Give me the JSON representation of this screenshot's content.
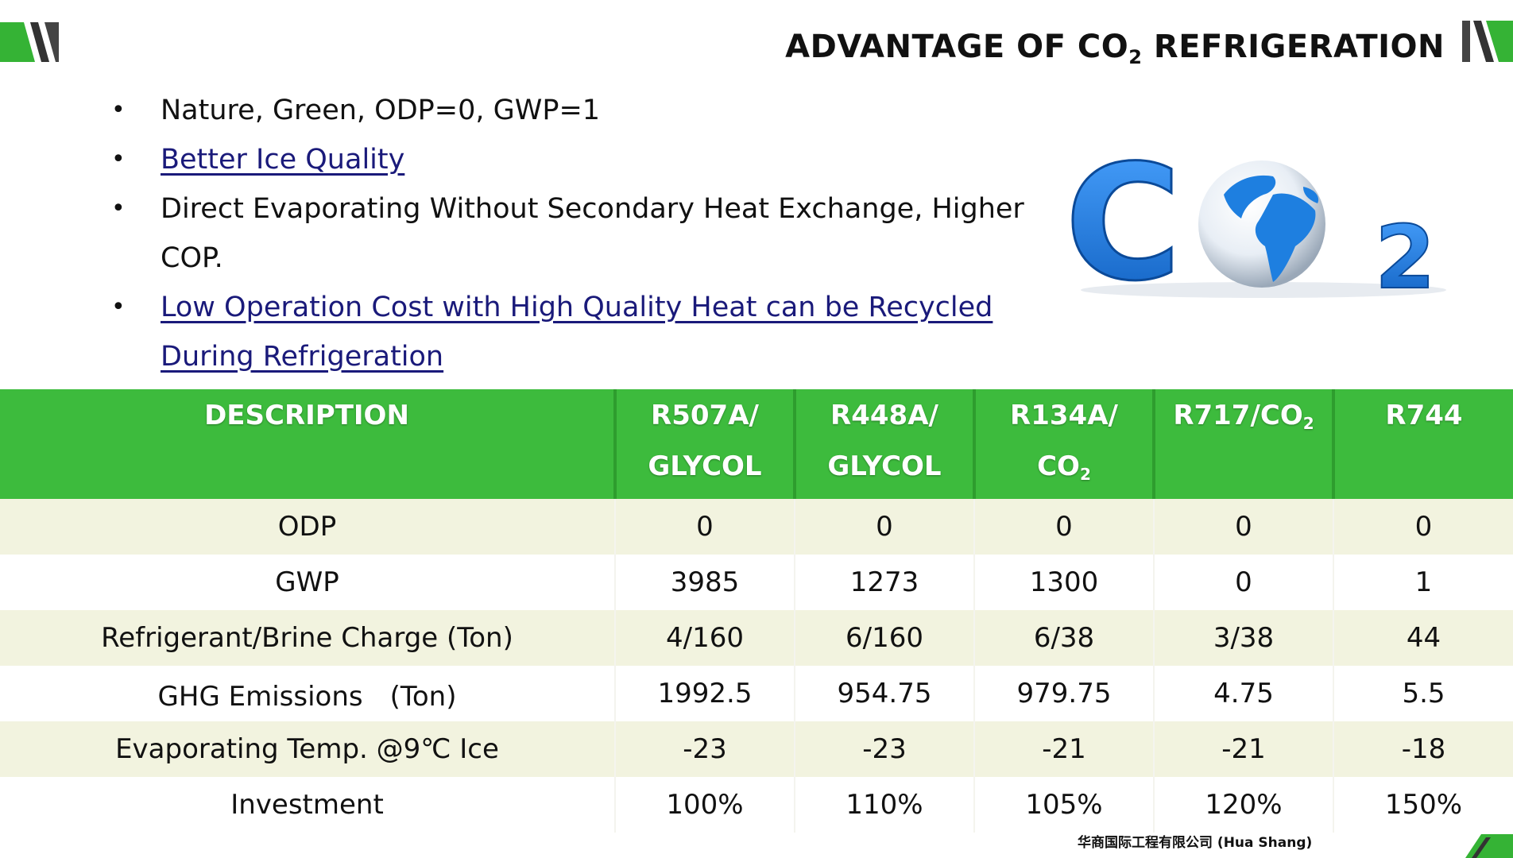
{
  "title": {
    "prefix": "ADVANTAGE OF CO",
    "subscript": "2",
    "suffix": " REFRIGERATION"
  },
  "bullets": [
    {
      "text": "Nature, Green, ODP=0,   GWP=1",
      "link": false
    },
    {
      "text": "Better Ice Quality",
      "link": true
    },
    {
      "text": "Direct Evaporating Without Secondary Heat Exchange, Higher COP.",
      "link": false
    },
    {
      "text": "Low Operation Cost with High Quality Heat can be Recycled During Refrigeration",
      "link": true
    }
  ],
  "logo": {
    "main": "C",
    "sub": "2",
    "icon": "globe-icon"
  },
  "table": {
    "headers": [
      {
        "line1": "DESCRIPTION",
        "line2": ""
      },
      {
        "line1": "R507A/",
        "line2": "GLYCOL"
      },
      {
        "line1": "R448A/",
        "line2": "GLYCOL"
      },
      {
        "line1": "R134A/",
        "line2_base": "CO",
        "line2_sub": "2"
      },
      {
        "line1_base": "R717/CO",
        "line1_sub": "2",
        "line2": ""
      },
      {
        "line1": "R744",
        "line2": ""
      }
    ],
    "rows": [
      [
        "ODP",
        "0",
        "0",
        "0",
        "0",
        "0"
      ],
      [
        "GWP",
        "3985",
        "1273",
        "1300",
        "0",
        "1"
      ],
      [
        "Refrigerant/Brine Charge (Ton)",
        "4/160",
        "6/160",
        "6/38",
        "3/38",
        "44"
      ],
      [
        "GHG Emissions　(Ton)",
        "1992.5",
        "954.75",
        "979.75",
        "4.75",
        "5.5"
      ],
      [
        "Evaporating Temp. @9℃ Ice",
        "-23",
        "-23",
        "-21",
        "-21",
        "-18"
      ],
      [
        "Investment",
        "100%",
        "110%",
        "105%",
        "120%",
        "150%"
      ]
    ]
  },
  "footer": "华商国际工程有限公司 (Hua Shang)",
  "colors": {
    "accent": "#3dbb3d",
    "header_text": "#ffffff",
    "link": "#1a1a7a",
    "logo_blue": "#1e7fe0"
  }
}
